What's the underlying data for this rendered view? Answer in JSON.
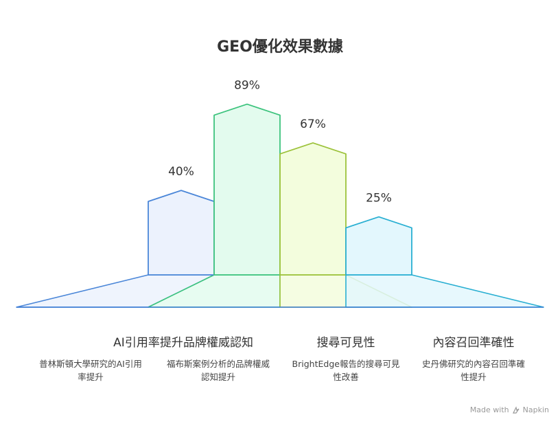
{
  "title": "GEO優化效果數據",
  "chart_data": {
    "type": "bar",
    "title": "GEO優化效果數據",
    "ylim": [
      0,
      100
    ],
    "series": [
      {
        "values": [
          40,
          89,
          67,
          25
        ]
      }
    ],
    "categories": [
      "AI引用率提升",
      "品牌權威認知",
      "搜尋可見性",
      "內容召回準確性"
    ],
    "value_labels": [
      "40%",
      "89%",
      "67%",
      "25%"
    ],
    "descriptions": [
      "普林斯頓大學研究的AI引用率提升",
      "福布斯案例分析的品牌權威認知提升",
      "BrightEdge報告的搜尋可見性改善",
      "史丹佛研究的內容召回準確性提升"
    ],
    "colors": [
      {
        "stroke": "#4a86d8",
        "fill": "#ecf2fd"
      },
      {
        "stroke": "#3cc37d",
        "fill": "#e3fbee"
      },
      {
        "stroke": "#9cc23a",
        "fill": "#f3fddd"
      },
      {
        "stroke": "#29afd2",
        "fill": "#e3f7fd"
      }
    ]
  },
  "watermark": {
    "prefix": "Made with",
    "brand": "Napkin",
    "icon": "napkin-logo-icon"
  }
}
